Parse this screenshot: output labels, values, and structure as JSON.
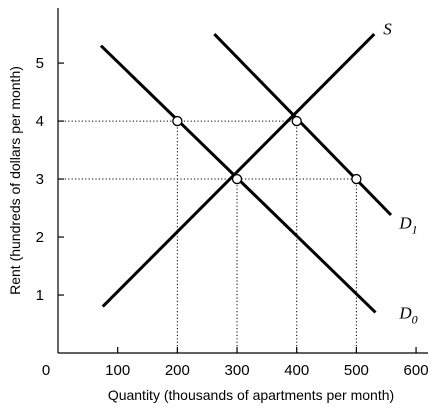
{
  "chart_data": {
    "type": "line",
    "title": "",
    "xlabel": "Quantity (thousands of apartments per month)",
    "ylabel": "Rent (hundreds of dollars per month)",
    "origin_label": "0",
    "xlim": [
      0,
      620
    ],
    "ylim": [
      0,
      5.95
    ],
    "x_ticks": [
      100,
      200,
      300,
      400,
      500,
      600
    ],
    "x_tick_labels": [
      "100",
      "200",
      "300",
      "400",
      "500",
      "600"
    ],
    "y_ticks": [
      1,
      2,
      3,
      4,
      5
    ],
    "y_tick_labels": [
      "1",
      "2",
      "3",
      "4",
      "5"
    ],
    "grid": false,
    "series": [
      {
        "name": "S",
        "label": "S",
        "sub": "",
        "x": [
          75,
          530
        ],
        "y": [
          0.8,
          5.5
        ],
        "label_pos": [
          545,
          5.6
        ]
      },
      {
        "name": "D1",
        "label": "D",
        "sub": "1",
        "x": [
          262,
          558
        ],
        "y": [
          5.5,
          2.38
        ],
        "label_pos": [
          572,
          2.25
        ]
      },
      {
        "name": "D0",
        "label": "D",
        "sub": "0",
        "x": [
          72,
          532
        ],
        "y": [
          5.3,
          0.7
        ],
        "label_pos": [
          572,
          0.7
        ]
      }
    ],
    "points": [
      {
        "x": 200,
        "y": 4
      },
      {
        "x": 400,
        "y": 4
      },
      {
        "x": 300,
        "y": 3
      },
      {
        "x": 500,
        "y": 3
      }
    ],
    "guides": [
      {
        "from": [
          0,
          4
        ],
        "to": [
          400,
          4
        ]
      },
      {
        "from": [
          0,
          3
        ],
        "to": [
          500,
          3
        ]
      },
      {
        "from": [
          200,
          0
        ],
        "to": [
          200,
          4
        ]
      },
      {
        "from": [
          300,
          0
        ],
        "to": [
          300,
          3
        ]
      },
      {
        "from": [
          400,
          0
        ],
        "to": [
          400,
          4
        ]
      },
      {
        "from": [
          500,
          0
        ],
        "to": [
          500,
          3
        ]
      }
    ]
  }
}
